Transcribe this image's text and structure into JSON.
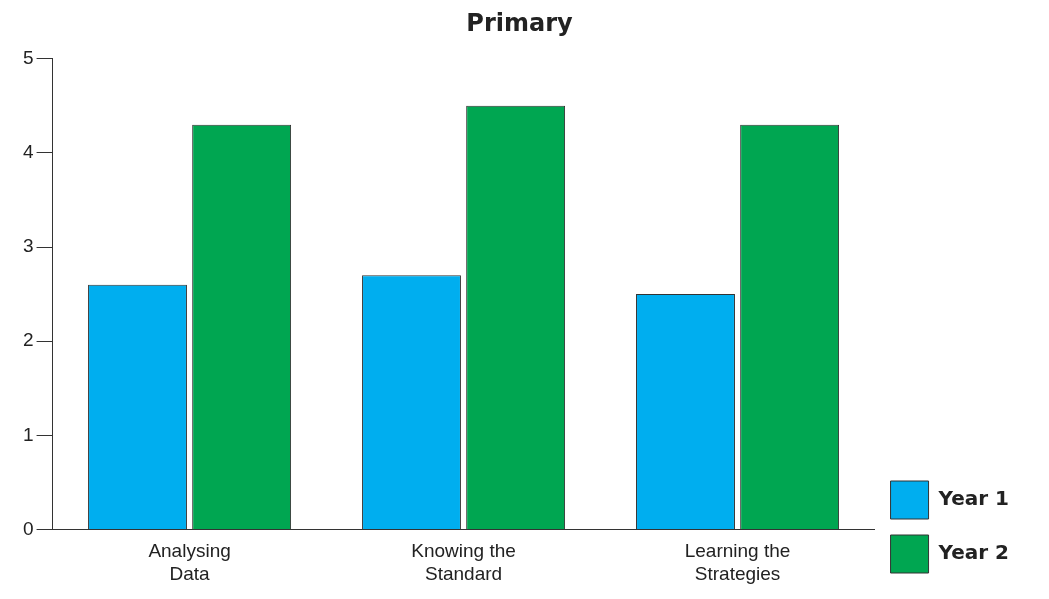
{
  "chart_data": {
    "type": "bar",
    "title": "Primary",
    "categories": [
      "Analysing Data",
      "Knowing the Standard",
      "Learning the Strategies"
    ],
    "series": [
      {
        "name": "Year 1",
        "color": "#00aeef",
        "values": [
          2.6,
          2.7,
          2.5
        ]
      },
      {
        "name": "Year 2",
        "color": "#00a651",
        "values": [
          4.3,
          4.5,
          4.3
        ]
      }
    ],
    "ylim": [
      0,
      5
    ],
    "yticks": [
      0,
      1,
      2,
      3,
      4,
      5
    ],
    "grid": false,
    "legend": "right"
  }
}
